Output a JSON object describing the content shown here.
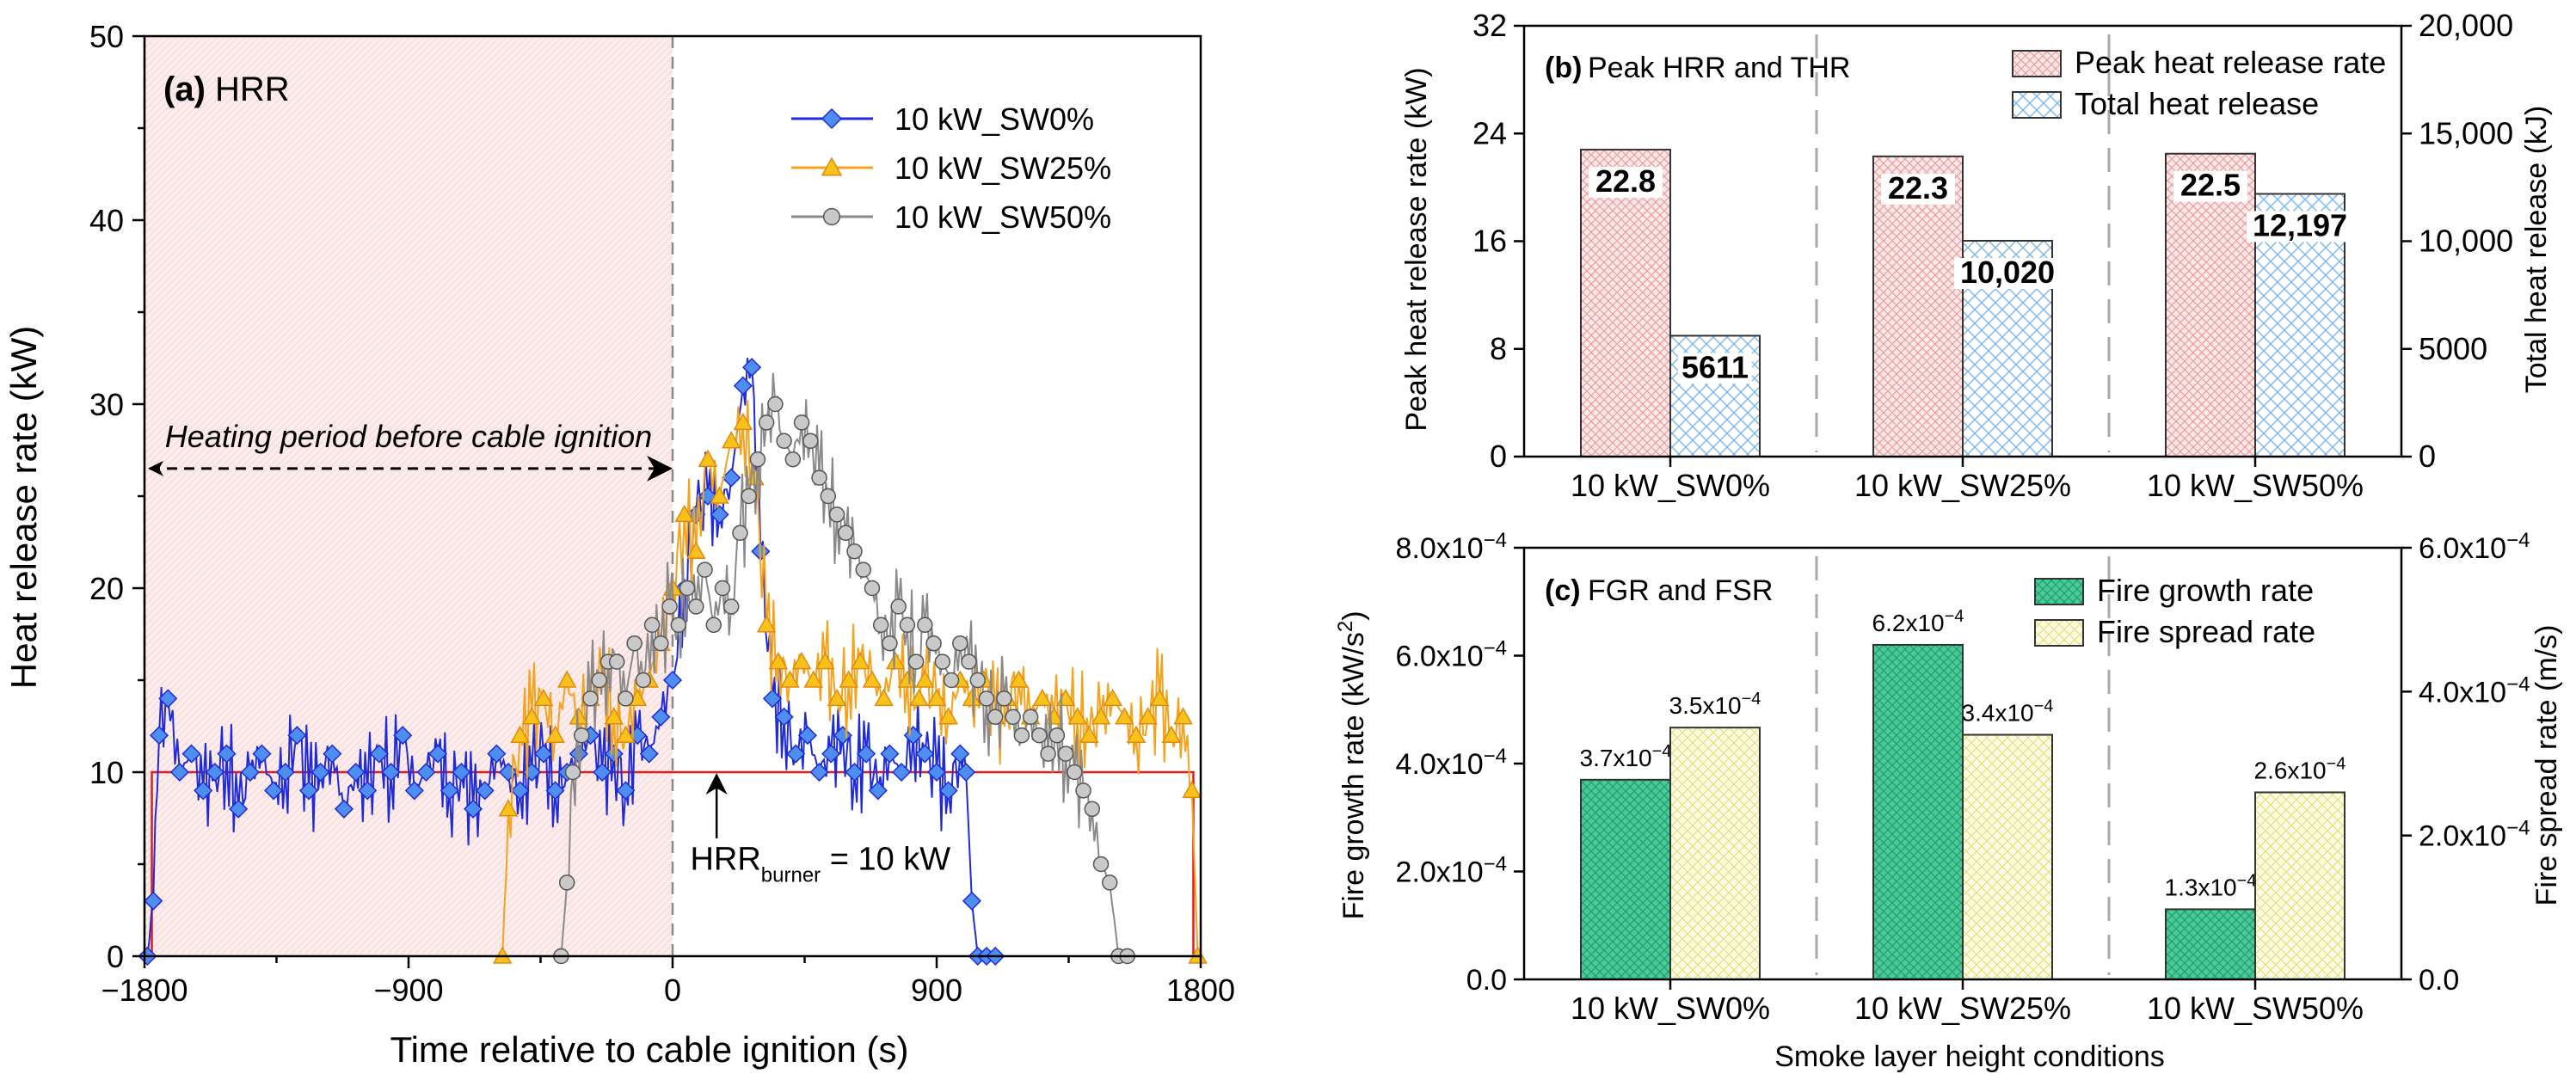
{
  "colors": {
    "sw0": "#1f2bd8",
    "sw0_marker": "#4d8ef0",
    "sw25": "#f5a21d",
    "sw25_marker": "#f7c21a",
    "sw50": "#8a8a8a",
    "sw50_marker": "#c9c9c9",
    "burner": "#e31a1c",
    "heating_fill": "#fbe7e7",
    "peak_bar": "#f6a8a8",
    "thr_bar": "#a9d3f1",
    "fgr_bar": "#3bbf8c",
    "fsr_bar": "#f8f2a6"
  },
  "chart_data": [
    {
      "id": "a",
      "type": "line",
      "panel_label": "(a)",
      "title": "HRR",
      "xlabel": "Time relative to cable ignition (s)",
      "ylabel": "Heat release rate (kW)",
      "xlim": [
        -1800,
        1800
      ],
      "ylim": [
        0,
        50
      ],
      "xticks": [
        -1800,
        -900,
        0,
        900,
        1800
      ],
      "xtick_labels": [
        "−1800",
        "−900",
        "0",
        "900",
        "1800"
      ],
      "yticks": [
        0,
        10,
        20,
        30,
        40,
        50
      ],
      "ytick_labels": [
        "0",
        "10",
        "20",
        "30",
        "40",
        "50"
      ],
      "heating_period": {
        "x": [
          -1800,
          0
        ],
        "label": "Heating period before cable ignition",
        "arrow_y": 26.5
      },
      "burner": {
        "value": 10,
        "label_main": "HRR",
        "label_sub": "burner",
        "label_tail": " = 10 kW",
        "arrow_x": 150
      },
      "series": [
        {
          "name": "10 kW_SW0%",
          "marker": "diamond",
          "x": [
            -1790,
            -1770,
            -1750,
            -1720,
            -1680,
            -1640,
            -1600,
            -1560,
            -1520,
            -1480,
            -1440,
            -1400,
            -1360,
            -1320,
            -1280,
            -1240,
            -1200,
            -1160,
            -1120,
            -1080,
            -1040,
            -1000,
            -960,
            -920,
            -880,
            -840,
            -800,
            -760,
            -720,
            -680,
            -640,
            -600,
            -560,
            -520,
            -480,
            -440,
            -400,
            -360,
            -320,
            -280,
            -240,
            -200,
            -160,
            -120,
            -80,
            -40,
            0,
            40,
            80,
            120,
            160,
            200,
            240,
            270,
            300,
            340,
            380,
            420,
            460,
            500,
            540,
            580,
            620,
            660,
            700,
            740,
            780,
            820,
            860,
            900,
            940,
            980,
            1000,
            1020,
            1040,
            1070,
            1100
          ],
          "y": [
            0,
            3,
            12,
            14,
            10,
            11,
            9,
            10,
            11,
            8,
            10,
            11,
            9,
            10,
            12,
            9,
            10,
            11,
            8,
            10,
            9,
            11,
            10,
            12,
            9,
            10,
            11,
            9,
            10,
            8,
            9,
            11,
            10,
            9,
            10,
            11,
            9,
            10,
            11,
            12,
            10,
            11,
            9,
            12,
            11,
            13,
            15,
            20,
            24,
            25,
            24,
            26,
            31,
            32,
            22,
            14,
            13,
            11,
            12,
            10,
            11,
            12,
            10,
            11,
            9,
            11,
            10,
            12,
            11,
            10,
            9,
            11,
            10,
            3,
            0,
            0,
            0
          ]
        },
        {
          "name": "10 kW_SW25%",
          "marker": "triangle",
          "x": [
            -580,
            -560,
            -520,
            -480,
            -440,
            -400,
            -360,
            -320,
            -280,
            -240,
            -200,
            -160,
            -120,
            -80,
            -40,
            0,
            40,
            80,
            120,
            160,
            200,
            240,
            280,
            320,
            360,
            400,
            440,
            480,
            520,
            560,
            600,
            640,
            680,
            720,
            760,
            800,
            840,
            860,
            900,
            940,
            980,
            1020,
            1060,
            1100,
            1140,
            1180,
            1220,
            1260,
            1300,
            1340,
            1380,
            1420,
            1460,
            1500,
            1540,
            1580,
            1620,
            1660,
            1700,
            1740,
            1770,
            1790
          ],
          "y": [
            0,
            8,
            12,
            13,
            14,
            12,
            15,
            13,
            14,
            15,
            13,
            12,
            14,
            15,
            17,
            20,
            24,
            22,
            27,
            25,
            28,
            29,
            26,
            18,
            16,
            15,
            16,
            15,
            16,
            14,
            15,
            16,
            15,
            14,
            16,
            15,
            14,
            15,
            14,
            13,
            15,
            14,
            15,
            13,
            14,
            15,
            13,
            14,
            13,
            14,
            13,
            12,
            13,
            14,
            13,
            12,
            13,
            14,
            12,
            13,
            9,
            0
          ]
        },
        {
          "name": "10 kW_SW50%",
          "marker": "circle",
          "x": [
            -380,
            -360,
            -340,
            -310,
            -280,
            -250,
            -220,
            -190,
            -160,
            -130,
            -100,
            -70,
            -40,
            -10,
            20,
            50,
            80,
            110,
            140,
            170,
            200,
            230,
            260,
            290,
            320,
            350,
            380,
            410,
            440,
            470,
            500,
            530,
            560,
            590,
            620,
            650,
            680,
            710,
            740,
            770,
            800,
            830,
            860,
            890,
            920,
            950,
            980,
            1010,
            1040,
            1070,
            1100,
            1130,
            1160,
            1190,
            1220,
            1250,
            1280,
            1310,
            1340,
            1370,
            1400,
            1430,
            1460,
            1490,
            1520,
            1550
          ],
          "y": [
            0,
            4,
            10,
            12,
            14,
            15,
            16,
            16,
            14,
            17,
            15,
            18,
            17,
            19,
            18,
            20,
            19,
            21,
            18,
            20,
            19,
            23,
            25,
            27,
            29,
            30,
            28,
            27,
            29,
            28,
            26,
            25,
            24,
            23,
            22,
            21,
            20,
            18,
            17,
            19,
            18,
            16,
            18,
            17,
            16,
            15,
            17,
            16,
            15,
            14,
            13,
            14,
            13,
            12,
            13,
            12,
            11,
            12,
            11,
            10,
            9,
            8,
            5,
            4,
            0,
            0
          ]
        }
      ]
    },
    {
      "id": "b",
      "type": "bar",
      "panel_label": "(b)",
      "title": "Peak HRR and THR",
      "categories": [
        "10 kW_SW0%",
        "10 kW_SW25%",
        "10 kW_SW50%"
      ],
      "ylabel": "Peak heat release rate (kW)",
      "y2label": "Total heat release (kJ)",
      "ylim": [
        0,
        32
      ],
      "yticks": [
        0,
        8,
        16,
        24,
        32
      ],
      "ytick_labels": [
        "0",
        "8",
        "16",
        "24",
        "32"
      ],
      "y2lim": [
        0,
        20000
      ],
      "y2ticks": [
        0,
        5000,
        10000,
        15000,
        20000
      ],
      "y2tick_labels": [
        "0",
        "5000",
        "10,000",
        "15,000",
        "20,000"
      ],
      "series": [
        {
          "name": "Peak heat release rate",
          "axis": "left",
          "values": [
            22.8,
            22.3,
            22.5
          ],
          "labels": [
            "22.8",
            "22.3",
            "22.5"
          ]
        },
        {
          "name": "Total heat release",
          "axis": "right",
          "values": [
            5611,
            10020,
            12197
          ],
          "labels": [
            "5611",
            "10,020",
            "12,197"
          ]
        }
      ]
    },
    {
      "id": "c",
      "type": "bar",
      "panel_label": "(c)",
      "title": "FGR and FSR",
      "categories": [
        "10 kW_SW0%",
        "10 kW_SW25%",
        "10 kW_SW50%"
      ],
      "xlabel": "Smoke layer height conditions",
      "ylabel_main": "Fire growth rate (kW/s",
      "ylabel_sup": "2",
      "ylabel_tail": ")",
      "y2label": "Fire spread rate (m/s)",
      "ylim": [
        0,
        0.0008
      ],
      "yticks": [
        0,
        0.0002,
        0.0004,
        0.0006,
        0.0008
      ],
      "ytick_labels": [
        {
          "m": "0.0",
          "e": ""
        },
        {
          "m": "2.0x10",
          "e": "−4"
        },
        {
          "m": "4.0x10",
          "e": "−4"
        },
        {
          "m": "6.0x10",
          "e": "−4"
        },
        {
          "m": "8.0x10",
          "e": "−4"
        }
      ],
      "y2lim": [
        0,
        0.0006
      ],
      "y2ticks": [
        0,
        0.0002,
        0.0004,
        0.0006
      ],
      "y2tick_labels": [
        {
          "m": "0.0",
          "e": ""
        },
        {
          "m": "2.0x10",
          "e": "−4"
        },
        {
          "m": "4.0x10",
          "e": "−4"
        },
        {
          "m": "6.0x10",
          "e": "−4"
        }
      ],
      "series": [
        {
          "name": "Fire growth rate",
          "axis": "left",
          "values": [
            0.00037,
            0.00062,
            0.00013
          ],
          "labels": [
            {
              "m": "3.7x10",
              "e": "−4"
            },
            {
              "m": "6.2x10",
              "e": "−4"
            },
            {
              "m": "1.3x10",
              "e": "−4"
            }
          ]
        },
        {
          "name": "Fire spread rate",
          "axis": "right",
          "values": [
            0.00035,
            0.00034,
            0.00026
          ],
          "labels": [
            {
              "m": "3.5x10",
              "e": "−4"
            },
            {
              "m": "3.4x10",
              "e": "−4"
            },
            {
              "m": "2.6x10",
              "e": "−4"
            }
          ]
        }
      ]
    }
  ]
}
